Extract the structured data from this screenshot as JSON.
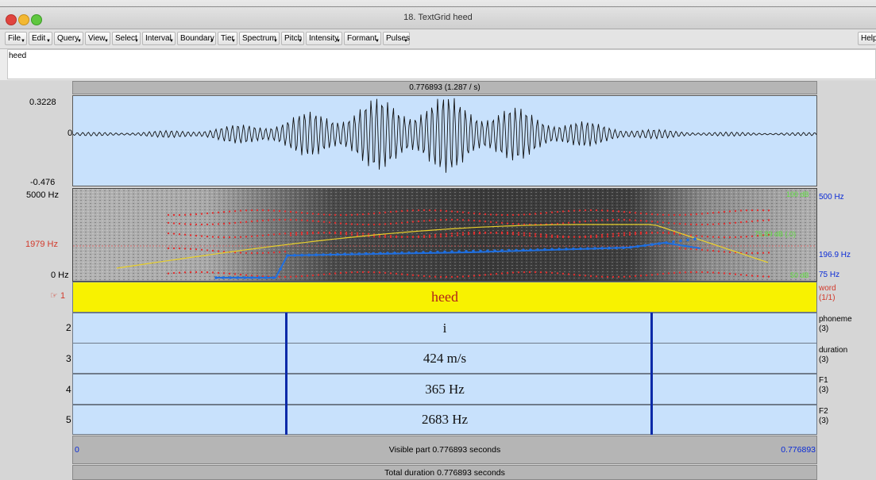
{
  "window": {
    "title": "18. TextGrid heed"
  },
  "menus": [
    "File",
    "Edit",
    "Query",
    "View",
    "Select",
    "Interval",
    "Boundary",
    "Tier",
    "Spectrum",
    "Pitch",
    "Intensity",
    "Formant",
    "Pulses"
  ],
  "help_label": "Help",
  "textfield": {
    "value": "heed"
  },
  "header": {
    "selection_text": "0.776893 (1.287 / s)"
  },
  "waveform": {
    "max_label": "0.3228",
    "zero_label": "0",
    "min_label": "-0.476"
  },
  "spectrogram": {
    "top_label": "5000 Hz",
    "cursor_label": "1979 Hz",
    "bottom_label": "0 Hz",
    "right_top": "500 Hz",
    "right_mid": "196.9 Hz",
    "right_bottom": "75 Hz",
    "green_top": "100 dB",
    "green_mid": "75.89 dB (.0)",
    "green_bottom": "50 dB"
  },
  "tiers": [
    {
      "index": "1",
      "text": "heed",
      "name": "word",
      "count": "(1/1)"
    },
    {
      "index": "2",
      "text": "i",
      "name": "phoneme",
      "count": "(3)"
    },
    {
      "index": "3",
      "text": "424 m/s",
      "name": "duration",
      "count": "(3)"
    },
    {
      "index": "4",
      "text": "365 Hz",
      "name": "F1",
      "count": "(3)"
    },
    {
      "index": "5",
      "text": "2683 Hz",
      "name": "F2",
      "count": "(3)"
    }
  ],
  "footer": {
    "start_time": "0",
    "visible_text": "Visible part 0.776893 seconds",
    "end_time": "0.776893",
    "total_text": "Total duration 0.776893 seconds"
  },
  "colors": {
    "tier_selected": "#f8f200",
    "tier_bg": "#c8e1fc",
    "pitch": "#1f6fe0",
    "formant": "#e03030",
    "intensity": "#d9c31a"
  }
}
